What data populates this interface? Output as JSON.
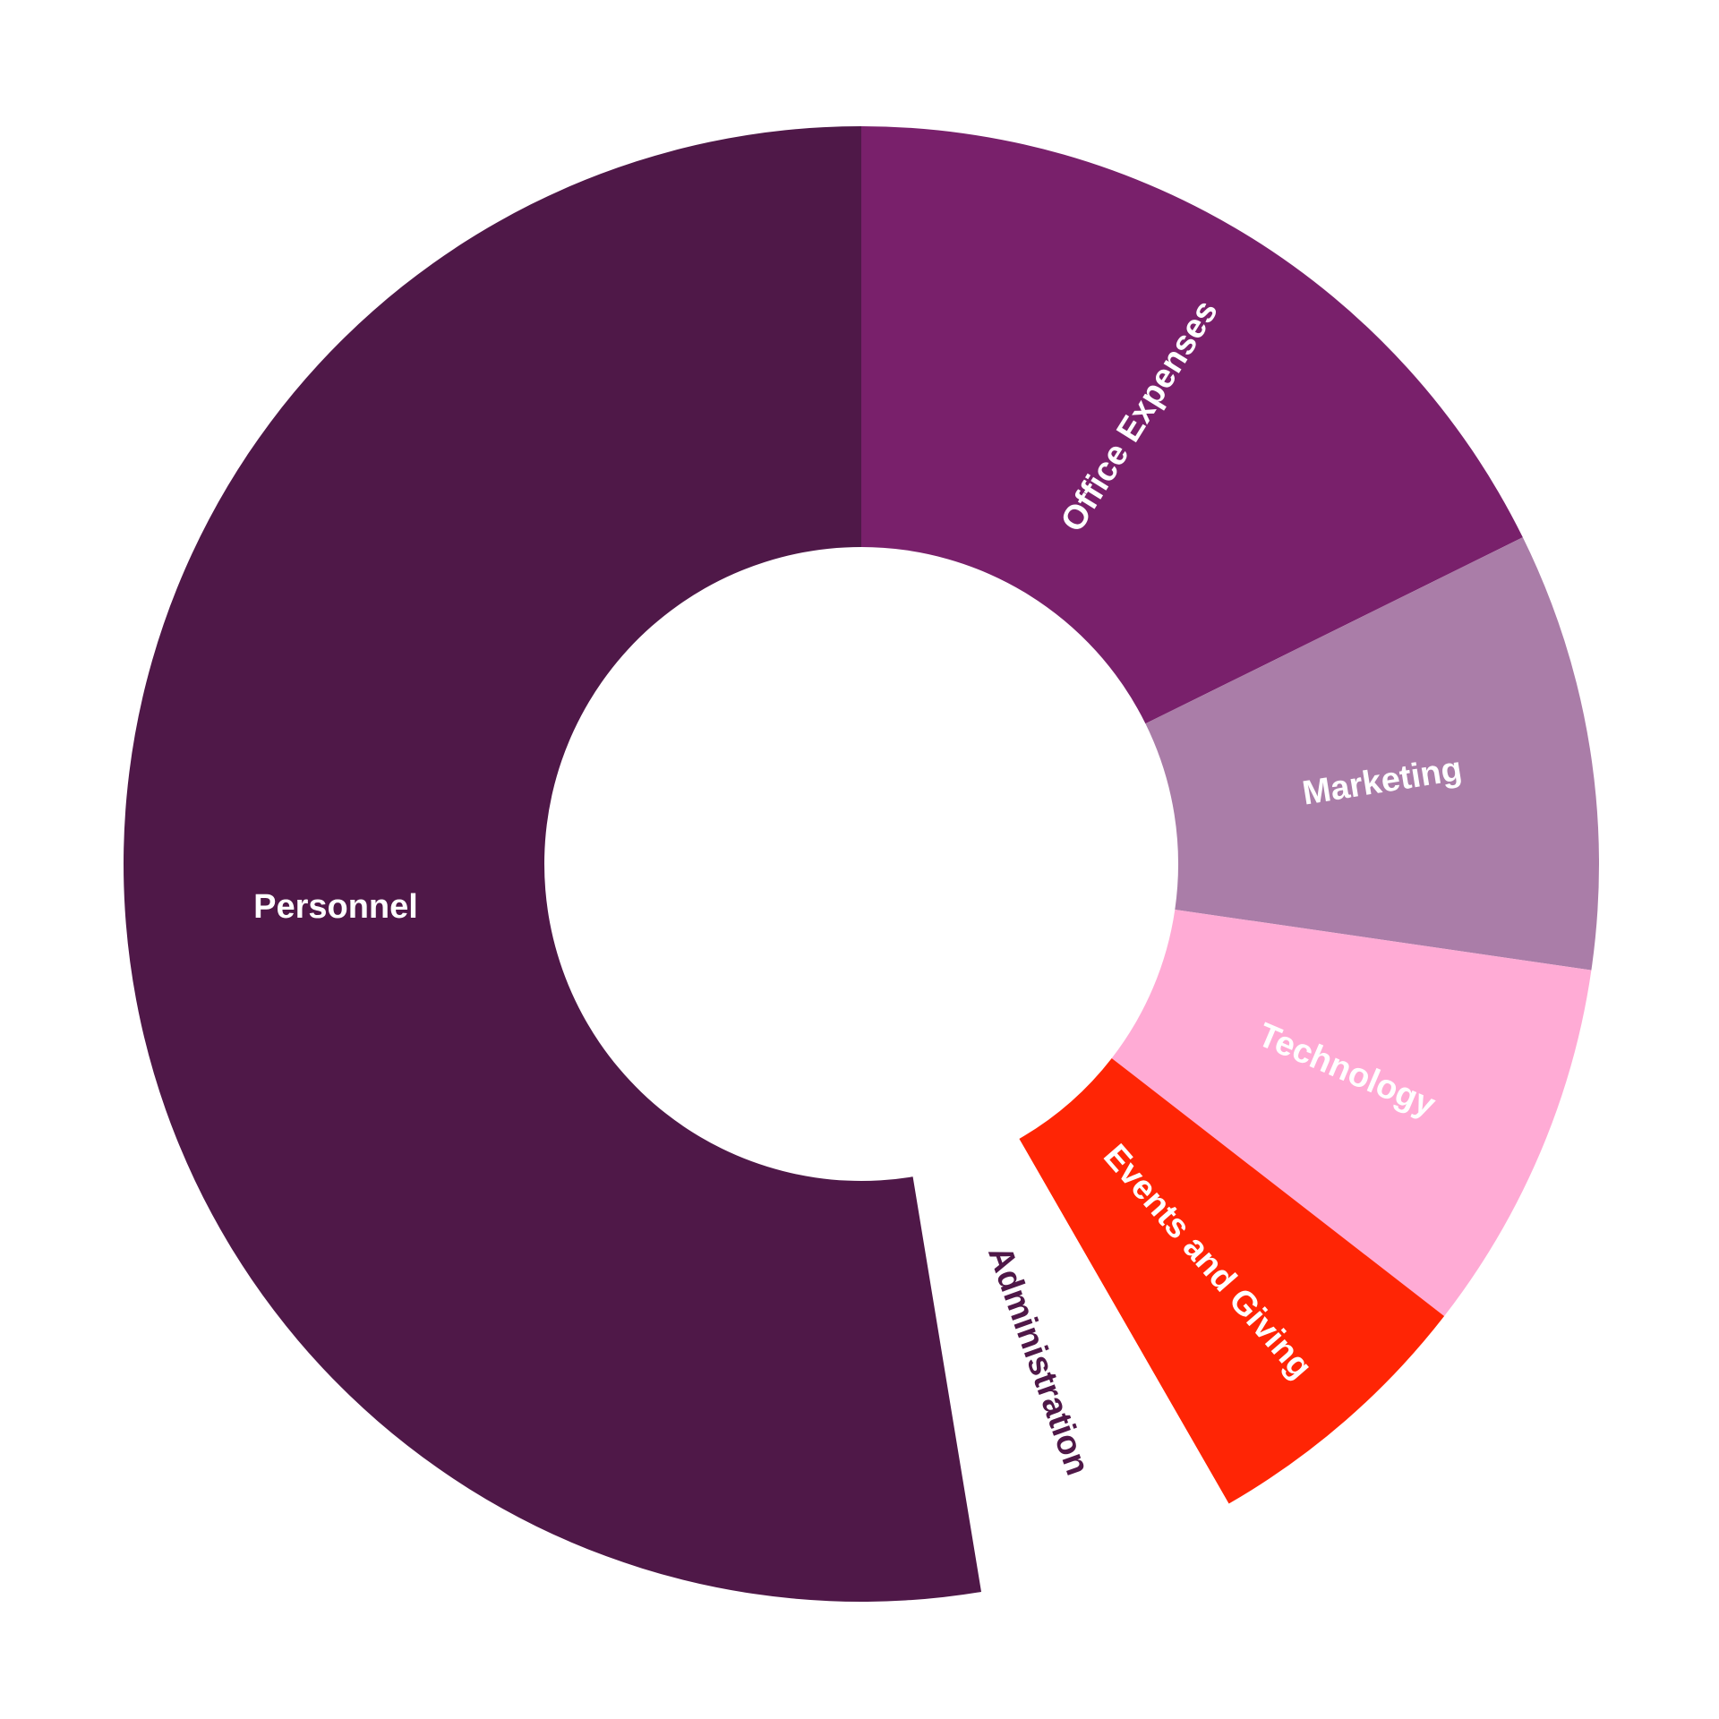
{
  "chart_data": {
    "type": "pie",
    "donut": true,
    "title": "",
    "slices": [
      {
        "label": "Office Expenses",
        "value": 17.7,
        "color": "#79206B",
        "label_color": "#ffffff"
      },
      {
        "label": "Marketing",
        "value": 9.6,
        "color": "#AA7DA8",
        "label_color": "#ffffff"
      },
      {
        "label": "Technology",
        "value": 8.2,
        "color": "#FFABD5",
        "label_color": "#ffffff"
      },
      {
        "label": "Events and Giving",
        "value": 6.2,
        "color": "#FF2505",
        "label_color": "#ffffff"
      },
      {
        "label": "Administration",
        "value": 5.7,
        "color": "#ffffff",
        "label_color": "#4F1848"
      },
      {
        "label": "Personnel",
        "value": 52.6,
        "color": "#4F1848",
        "label_color": "#ffffff"
      }
    ]
  }
}
